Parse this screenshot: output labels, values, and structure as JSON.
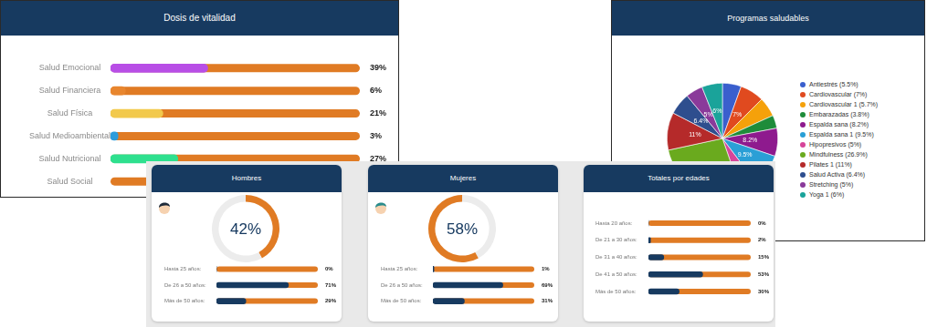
{
  "chart_data": [
    {
      "type": "bar",
      "title": "Dosis de vitalidad",
      "orientation": "horizontal",
      "categories": [
        "Salud Emocional",
        "Salud Financiera",
        "Salud Física",
        "Salud Medioambiental",
        "Salud Nutricional",
        "Salud Social"
      ],
      "values": [
        39,
        6,
        21,
        3,
        27,
        null
      ],
      "value_labels": [
        "39%",
        "6%",
        "21%",
        "3%",
        "27%",
        null
      ],
      "colors": [
        "#b84ee6",
        "#e8862e",
        "#f2c94c",
        "#2d9cdb",
        "#2ee08e",
        "#e07b24"
      ],
      "xlim": [
        0,
        100
      ],
      "data_labels": true,
      "tick_labels": "y",
      "grid": false
    },
    {
      "type": "pie",
      "title": "Programas saludables",
      "categories": [
        "Antiestrés (5.5%)",
        "Cardiovascular (7%)",
        "Cardiovascular 1 (5.7%)",
        "Embarazadas (3.8%)",
        "Espalda sana (8.2%)",
        "Espalda sana 1 (9.5%)",
        "Hipopresivos (5%)",
        "Mindfulness (26.9%)",
        "Pilates 1 (11%)",
        "Salud Activa (6.4%)",
        "Stretching (5%)",
        "Yoga 1 (6%)"
      ],
      "values": [
        5.5,
        7,
        5.7,
        3.8,
        8.2,
        9.5,
        5,
        26.9,
        11,
        6.4,
        5,
        6
      ],
      "value_labels": [
        null,
        "7%",
        null,
        null,
        "8.2%",
        "9.5%",
        null,
        null,
        "11%",
        "6.4%",
        "5%",
        "6%"
      ],
      "colors": [
        "#3a5fcd",
        "#e04a1f",
        "#f5a10a",
        "#1e8c3a",
        "#8e1a8e",
        "#2a9fd6",
        "#d6459a",
        "#6aaa1e",
        "#b52a2a",
        "#2e4e8e",
        "#8a3a9a",
        "#1aa39a"
      ],
      "data_labels": true,
      "legend": "right"
    },
    {
      "type": "doughnut",
      "categories": [
        "Hombres",
        "Mujeres"
      ],
      "values": [
        42,
        58
      ],
      "value_labels": [
        "42%",
        "58%"
      ],
      "color": "#e07b24",
      "data_labels": true
    },
    {
      "type": "bar",
      "orientation": "horizontal",
      "categories": [
        "Hasta 25 años:",
        "De 26 a 50 años:",
        "Más de 50 años:"
      ],
      "values": [
        0,
        71,
        29
      ],
      "value_labels": [
        "0%",
        "71%",
        "29%"
      ],
      "color": "#173a60",
      "xlim": [
        0,
        100
      ],
      "data_labels": true,
      "tick_labels": "y",
      "grid": false
    },
    {
      "type": "bar",
      "orientation": "horizontal",
      "categories": [
        "Hasta 25 años:",
        "De 26 a 50 años:",
        "Más de 50 años:"
      ],
      "values": [
        1,
        69,
        31
      ],
      "value_labels": [
        "1%",
        "69%",
        "31%"
      ],
      "color": "#173a60",
      "xlim": [
        0,
        100
      ],
      "data_labels": true,
      "tick_labels": "y",
      "grid": false
    },
    {
      "type": "bar",
      "title": "Totales por edades",
      "orientation": "horizontal",
      "categories": [
        "Hasta 20 años:",
        "De 21 a 30 años:",
        "De 31 a 40 años:",
        "De 41 a 50 años:",
        "Más de 50 años:"
      ],
      "values": [
        0,
        2,
        15,
        53,
        30
      ],
      "value_labels": [
        "0%",
        "2%",
        "15%",
        "53%",
        "30%"
      ],
      "color": "#173a60",
      "xlim": [
        0,
        100
      ],
      "data_labels": true,
      "tick_labels": "y",
      "grid": false
    }
  ]
}
